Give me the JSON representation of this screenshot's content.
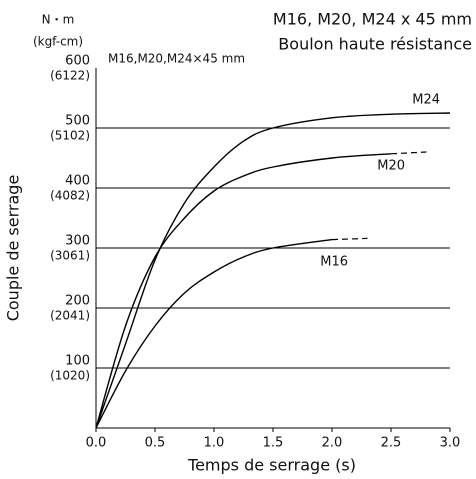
{
  "chart_data": {
    "type": "line",
    "title": "M16, M20, M24 x 45 mm",
    "subtitle": "Boulon haute résistance",
    "annotation": "M16,M20,M24×45 mm",
    "x_label": "Temps de serrage (s)",
    "y_label": "Couple de serrage",
    "y_unit": "N・m",
    "y2_unit": "(kgf-cm)",
    "xlim": [
      0,
      3
    ],
    "xticks": [
      {
        "value": 0,
        "label": "0.0"
      },
      {
        "value": 0.5,
        "label": "0.5"
      },
      {
        "value": 1,
        "label": "1.0"
      },
      {
        "value": 1.5,
        "label": "1.5"
      },
      {
        "value": 2,
        "label": "2.0"
      },
      {
        "value": 2.5,
        "label": "2.5"
      },
      {
        "value": 3,
        "label": "3.0"
      }
    ],
    "ylim": [
      0,
      600
    ],
    "yticks": [
      100,
      200,
      300,
      400,
      500,
      600
    ],
    "y2lim": [
      0,
      6122
    ],
    "y2ticks": [
      {
        "value": 1020,
        "label": "(1020)"
      },
      {
        "value": 2041,
        "label": "(2041)"
      },
      {
        "value": 3061,
        "label": "(3061)"
      },
      {
        "value": 4082,
        "label": "(4082)"
      },
      {
        "value": 5102,
        "label": "(5102)"
      },
      {
        "value": 6122,
        "label": "(6122)"
      }
    ],
    "grid": true,
    "series": [
      {
        "name": "M24",
        "color": "#000000",
        "x": [
          0,
          0.25,
          0.5,
          0.75,
          1.0,
          1.25,
          1.5,
          2.0,
          2.5,
          3.0
        ],
        "values": [
          0,
          140,
          280,
          375,
          435,
          478,
          500,
          517,
          523,
          525
        ]
      },
      {
        "name": "M20",
        "color": "#000000",
        "x": [
          0,
          0.25,
          0.5,
          0.75,
          1.0,
          1.25,
          1.5,
          2.0,
          2.5
        ],
        "values": [
          0,
          170,
          285,
          350,
          395,
          420,
          435,
          450,
          457
        ],
        "extension": {
          "x": [
            2.5,
            2.8
          ],
          "values": [
            457,
            460
          ]
        }
      },
      {
        "name": "M16",
        "color": "#000000",
        "x": [
          0,
          0.25,
          0.5,
          0.75,
          1.0,
          1.25,
          1.5,
          2.0
        ],
        "values": [
          0,
          95,
          170,
          225,
          260,
          285,
          300,
          314
        ],
        "extension": {
          "x": [
            2.0,
            2.3
          ],
          "values": [
            314,
            316
          ]
        }
      }
    ]
  }
}
